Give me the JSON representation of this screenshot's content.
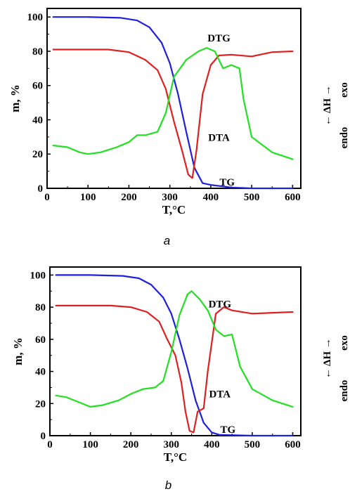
{
  "chart_data": [
    {
      "panel": "a",
      "caption": "a",
      "type": "line",
      "xlabel": "T,°C",
      "ylabel": "m, %",
      "right_label_top": "← ΔH →",
      "right_label_exo": "exo",
      "right_label_endo": "endo",
      "xlim": [
        0,
        620
      ],
      "ylim": [
        0,
        105
      ],
      "xticks": [
        0,
        100,
        200,
        300,
        400,
        500,
        600
      ],
      "yticks": [
        0,
        20,
        40,
        60,
        80,
        100
      ],
      "series": [
        {
          "name": "TG",
          "color": "#1f1fe0",
          "label_at": [
            440,
            0
          ],
          "x": [
            15,
            100,
            180,
            220,
            250,
            280,
            300,
            320,
            340,
            360,
            380,
            400,
            450,
            500,
            600
          ],
          "y": [
            100,
            100,
            99.5,
            98,
            94,
            85,
            73,
            55,
            33,
            12,
            3,
            2,
            0.5,
            0,
            0
          ]
        },
        {
          "name": "DTG",
          "color": "#e02020",
          "label_at": [
            420,
            84
          ],
          "x": [
            15,
            100,
            150,
            200,
            240,
            270,
            290,
            310,
            330,
            345,
            355,
            365,
            380,
            400,
            420,
            450,
            500,
            550,
            600
          ],
          "y": [
            81,
            81,
            81,
            79.5,
            75,
            69,
            58,
            39,
            22,
            8,
            6,
            22,
            55,
            72,
            77.5,
            78,
            77,
            79.5,
            80
          ]
        },
        {
          "name": "DTA",
          "color": "#22e022",
          "label_at": [
            420,
            26
          ],
          "x": [
            15,
            50,
            80,
            100,
            130,
            170,
            200,
            220,
            240,
            270,
            290,
            310,
            340,
            370,
            390,
            410,
            430,
            450,
            470,
            480,
            500,
            550,
            600
          ],
          "y": [
            25,
            24,
            21,
            20,
            21,
            24,
            27,
            31,
            31,
            33,
            44,
            65,
            75,
            80,
            82,
            80,
            70,
            72,
            70,
            52,
            30,
            21,
            17
          ]
        }
      ]
    },
    {
      "panel": "b",
      "caption": "b",
      "type": "line",
      "xlabel": "T,°C",
      "ylabel": "m, %",
      "right_label_top": "← ΔH →",
      "right_label_exo": "exo",
      "right_label_endo": "endo",
      "xlim": [
        0,
        620
      ],
      "ylim": [
        0,
        105
      ],
      "xticks": [
        0,
        100,
        200,
        300,
        400,
        500,
        600
      ],
      "yticks": [
        0,
        20,
        40,
        60,
        80,
        100
      ],
      "series": [
        {
          "name": "TG",
          "color": "#1f1fe0",
          "label_at": [
            440,
            0
          ],
          "x": [
            15,
            100,
            180,
            220,
            250,
            280,
            300,
            320,
            340,
            360,
            380,
            400,
            420,
            500,
            600
          ],
          "y": [
            100,
            100,
            99.5,
            98,
            94,
            86,
            76,
            60,
            42,
            22,
            8,
            2,
            0.5,
            0,
            0
          ]
        },
        {
          "name": "DTG",
          "color": "#e02020",
          "label_at": [
            420,
            78
          ],
          "x": [
            15,
            100,
            150,
            200,
            240,
            270,
            290,
            310,
            325,
            335,
            345,
            355,
            365,
            380,
            390,
            410,
            430,
            450,
            500,
            550,
            600
          ],
          "y": [
            81,
            81,
            81,
            80,
            77,
            71,
            60,
            50,
            33,
            15,
            3,
            2,
            15,
            17,
            40,
            76,
            80,
            78,
            76,
            76.5,
            77
          ]
        },
        {
          "name": "DTA",
          "color": "#22e022",
          "label_at": [
            420,
            22
          ],
          "x": [
            15,
            40,
            70,
            100,
            130,
            170,
            200,
            230,
            260,
            280,
            300,
            320,
            340,
            350,
            370,
            390,
            410,
            430,
            450,
            470,
            500,
            550,
            600
          ],
          "y": [
            25,
            24,
            21,
            18,
            19,
            22,
            26,
            29,
            30,
            34,
            52,
            75,
            88,
            90,
            85,
            78,
            66,
            62,
            63,
            43,
            29,
            22,
            18
          ]
        }
      ]
    }
  ]
}
